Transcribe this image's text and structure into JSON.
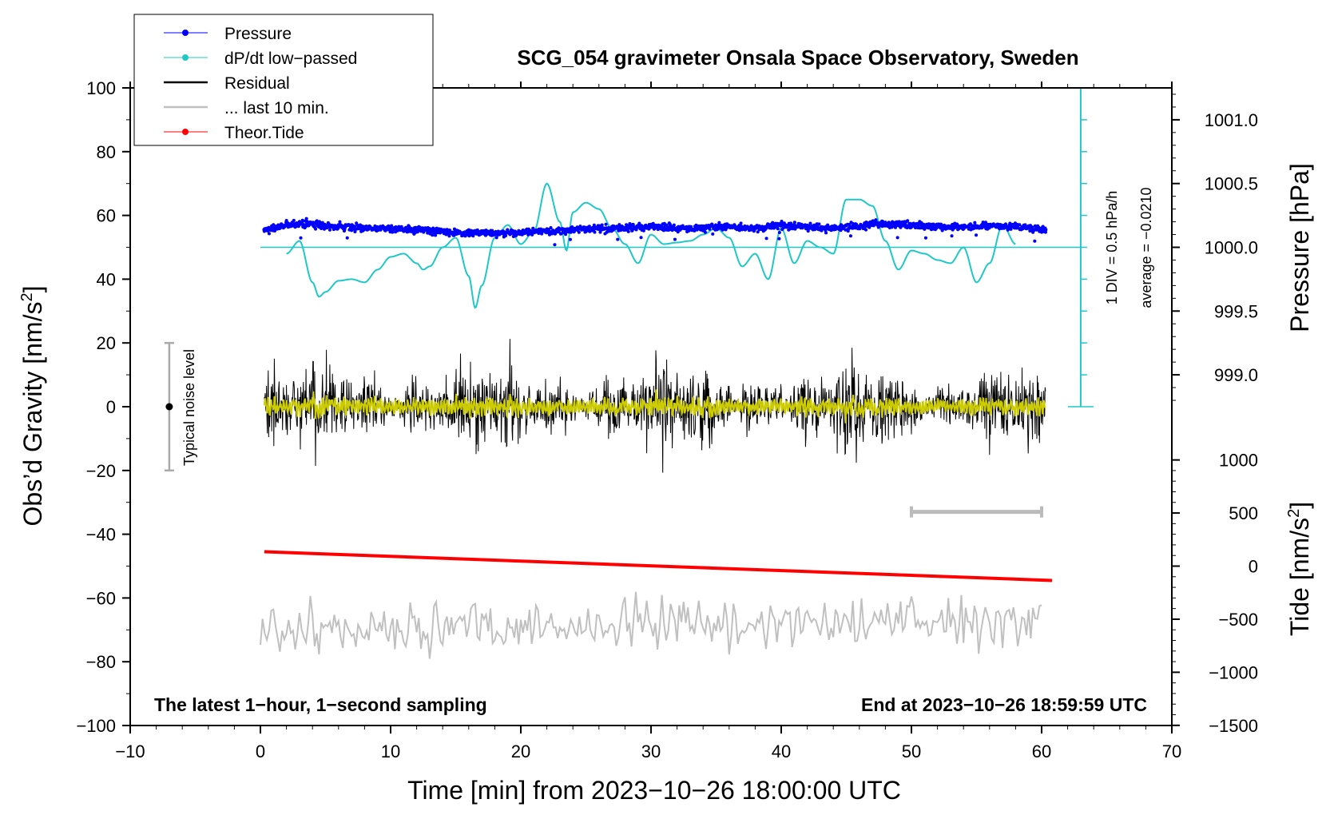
{
  "chart_data": {
    "type": "line",
    "title": "SCG_054 gravimeter Onsala Space Observatory, Sweden",
    "xlabel": "Time [min] from 2023−10−26 18:00:00 UTC",
    "ylabel_left_main": "Obs’d Gravity [nm/s",
    "ylabel_left_sup": "2",
    "ylabel_left_close": "]",
    "ylabel_right_pressure": "Pressure [hPa]",
    "ylabel_right_tide_main": "Tide [nm/s",
    "ylabel_right_tide_sup": "2",
    "ylabel_right_tide_close": "]",
    "xlim": [
      -10,
      70
    ],
    "ylim": [
      -100,
      100
    ],
    "x_ticks": [
      -10,
      0,
      10,
      20,
      30,
      40,
      50,
      60,
      70
    ],
    "x_tick_labels": [
      "−10",
      "0",
      "10",
      "20",
      "30",
      "40",
      "50",
      "60",
      "70"
    ],
    "y_ticks": [
      -100,
      -80,
      -60,
      -40,
      -20,
      0,
      20,
      40,
      60,
      80,
      100
    ],
    "y_tick_labels": [
      "−100",
      "−80",
      "−60",
      "−40",
      "−20",
      "0",
      "20",
      "40",
      "60",
      "80",
      "100"
    ],
    "pressure_axis": {
      "ticks": [
        999.0,
        999.5,
        1000.0,
        1000.5,
        1001.0
      ],
      "tick_labels": [
        "999.0",
        "999.5",
        "1000.0",
        "1000.5",
        "1001.0"
      ],
      "gravity_at_1000": 50,
      "gravity_per_hpa": 40
    },
    "tide_axis": {
      "ticks": [
        -1500,
        -1000,
        -500,
        0,
        500,
        1000
      ],
      "tick_labels": [
        "−1500",
        "−1000",
        "−500",
        "0",
        "500",
        "1000"
      ],
      "gravity_at_0": -50,
      "gravity_per_unit": 0.0333
    },
    "dpdt_scale": {
      "label_div": "1 DIV = 0.5 hPa/h",
      "label_avg": "average = −0.0210",
      "x": 63,
      "y_from": 0,
      "y_to": 100,
      "div": 10
    },
    "noise_bar": {
      "label": "Typical noise level",
      "x": -7,
      "center": 0,
      "range": [
        -20,
        20
      ]
    },
    "ten_min_bar": {
      "x_from": 50,
      "x_to": 60,
      "y": -33
    },
    "series": [
      {
        "name": "Pressure",
        "color": "#0000ff",
        "style": "dots",
        "x": [
          0.3,
          2,
          4,
          4.5,
          6,
          8,
          10,
          12,
          14,
          16,
          18,
          20,
          22,
          24,
          26,
          28,
          30,
          32,
          34,
          36,
          38,
          40,
          42,
          44,
          46,
          47.5,
          50,
          52,
          54,
          56,
          58,
          60.3
        ],
        "values": [
          55.5,
          57,
          57.5,
          56.5,
          56.5,
          56,
          56,
          55.5,
          55,
          54.5,
          54.5,
          54.5,
          55,
          55.5,
          56,
          56,
          56.5,
          56,
          56,
          56.5,
          56,
          57,
          56.5,
          56,
          56.5,
          57.5,
          57,
          56.5,
          56.5,
          56.5,
          56.5,
          55.5
        ],
        "noise": 0.9,
        "points_per_min": 30
      },
      {
        "name": "dP/dt low−passed",
        "color": "#1fc8c8",
        "style": "line",
        "x": [
          2,
          3,
          4,
          4.5,
          5,
          6,
          7,
          8,
          9,
          10,
          11,
          12,
          12.5,
          13,
          14,
          15,
          16,
          16.5,
          17,
          18,
          19,
          20,
          21,
          22,
          23,
          23.5,
          24,
          25,
          26,
          27,
          28,
          29,
          30,
          31,
          32,
          33,
          34,
          35,
          36,
          37,
          38,
          39,
          40,
          41,
          42,
          43,
          44,
          45,
          46,
          47,
          48,
          49,
          50,
          51,
          52,
          53,
          54,
          55,
          56,
          57,
          58
        ],
        "values": [
          48,
          52,
          39,
          34.5,
          36,
          39.5,
          40,
          39,
          43,
          47,
          48,
          45,
          43,
          44,
          50,
          53,
          41,
          31,
          38,
          53,
          57,
          51,
          55,
          70,
          58,
          49,
          61,
          64,
          62,
          56,
          51,
          45,
          54,
          51,
          51.5,
          52,
          54,
          56,
          53,
          44,
          48,
          40,
          56,
          45,
          52,
          50,
          48,
          65,
          65,
          63,
          52,
          43,
          49,
          48,
          46,
          45,
          50,
          39,
          45,
          57,
          51
        ]
      },
      {
        "name": "Residual",
        "color": "#000000",
        "style": "line",
        "x": [
          0.3,
          60.3
        ],
        "values": [
          0,
          0
        ],
        "typical_range": [
          -27,
          24
        ],
        "points_per_min": 30
      },
      {
        "name": "... last 10 min.",
        "color": "#c0c0c0",
        "style": "line",
        "x": [
          0,
          60
        ],
        "values": [
          -70,
          -67
        ],
        "typical_range": [
          -81,
          -42
        ],
        "points_per_min": 6
      },
      {
        "name": "Theor.Tide",
        "color": "#ff0000",
        "style": "line",
        "x": [
          0.3,
          60.8
        ],
        "values": [
          -45.5,
          -54.5
        ]
      }
    ],
    "legend": {
      "placement": "top-left",
      "entries": [
        {
          "label": "Pressure",
          "color": "#0000ff",
          "marker": "dot"
        },
        {
          "label": "dP/dt low−passed",
          "color": "#1fc8c8",
          "marker": "dot"
        },
        {
          "label": "Residual",
          "color": "#000000",
          "marker": "line"
        },
        {
          "label": "... last 10 min.",
          "color": "#c0c0c0",
          "marker": "line"
        },
        {
          "label": "Theor.Tide",
          "color": "#ff0000",
          "marker": "dot"
        }
      ]
    },
    "annotations": {
      "footer_left": "The latest 1−hour, 1−second sampling",
      "footer_right": "End at 2023−10−26 18:59:59 UTC"
    },
    "extra_series_color": "#cccc00",
    "grid": false
  }
}
